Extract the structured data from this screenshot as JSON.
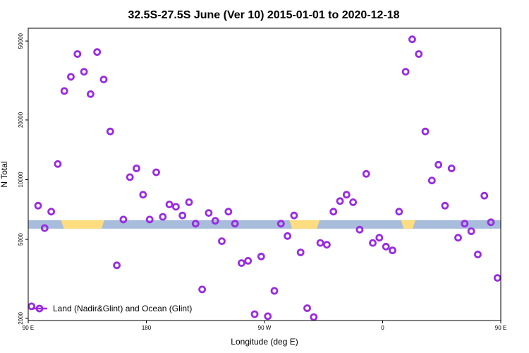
{
  "chart_data": {
    "type": "scatter",
    "title": "32.5S-27.5S June (Ver 10)   2015-01-01 to 2020-12-18",
    "xlabel": "Longitude (deg E)",
    "ylabel": "N Total",
    "y_scale": "log",
    "xlim": [
      90,
      450
    ],
    "ylim": [
      1950,
      58000
    ],
    "x_ticks": [
      {
        "value": 90,
        "label": "90 E"
      },
      {
        "value": 180,
        "label": "180"
      },
      {
        "value": 270,
        "label": "90 W"
      },
      {
        "value": 360,
        "label": "0"
      },
      {
        "value": 450,
        "label": "90 E"
      },
      {
        "value": 540,
        "label": "180"
      }
    ],
    "y_ticks": [
      {
        "value": 2000,
        "label": "2000"
      },
      {
        "value": 5000,
        "label": "5000"
      },
      {
        "value": 10000,
        "label": "10000"
      },
      {
        "value": 20000,
        "label": "20000"
      },
      {
        "value": 50000,
        "label": "50000"
      }
    ],
    "legend": {
      "label": "Land (Nadir&Glint) and Ocean (Glint)",
      "position": "bottom-left"
    },
    "colors": {
      "series": "#9a2be2",
      "ocean": "#a8bcdc",
      "land": "#fedd80"
    },
    "band": {
      "y_center": 5950,
      "land_ranges": [
        [
          115,
          148
        ],
        [
          289,
          312
        ],
        [
          374,
          385
        ],
        [
          474,
          507
        ]
      ]
    },
    "series": [
      {
        "name": "Land (Nadir&Glint) and Ocean (Glint)",
        "x": [
          92.5,
          97.5,
          102.5,
          107.5,
          112.5,
          117.5,
          122.5,
          127.5,
          132.5,
          137.5,
          142.5,
          147.5,
          152.5,
          157.5,
          162.5,
          167.5,
          172.5,
          177.5,
          182.5,
          187.5,
          192.5,
          197.5,
          202.5,
          207.5,
          212.5,
          217.5,
          222.5,
          227.5,
          232.5,
          237.5,
          242.5,
          247.5,
          252.5,
          257.5,
          262.5,
          267.5,
          272.5,
          277.5,
          282.5,
          287.5,
          292.5,
          297.5,
          302.5,
          307.5,
          312.5,
          317.5,
          322.5,
          327.5,
          332.5,
          337.5,
          342.5,
          347.5,
          352.5,
          357.5,
          362.5,
          367.5,
          372.5,
          377.5,
          382.5,
          387.5,
          392.5,
          397.5,
          402.5,
          407.5,
          412.5,
          417.5,
          422.5,
          427.5,
          432.5,
          437.5,
          442.5,
          447.5
        ],
        "y": [
          2300,
          7400,
          5700,
          6900,
          12000,
          28000,
          33000,
          43000,
          35000,
          27000,
          44000,
          32000,
          17500,
          3700,
          6300,
          10300,
          11400,
          8400,
          6300,
          10900,
          6500,
          7500,
          7300,
          6600,
          7700,
          6000,
          2800,
          6800,
          6200,
          4900,
          6900,
          6000,
          3800,
          3900,
          2100,
          4100,
          2050,
          2750,
          6000,
          5200,
          6600,
          4300,
          2250,
          2030,
          4800,
          4700,
          6900,
          7800,
          8400,
          7700,
          5600,
          10700,
          4800,
          5100,
          4600,
          4400,
          6900,
          35000,
          51000,
          43000,
          17500,
          9900,
          11900,
          7400,
          11400,
          5100,
          6000,
          5500,
          4200,
          8300,
          6100,
          3200
        ]
      }
    ]
  }
}
